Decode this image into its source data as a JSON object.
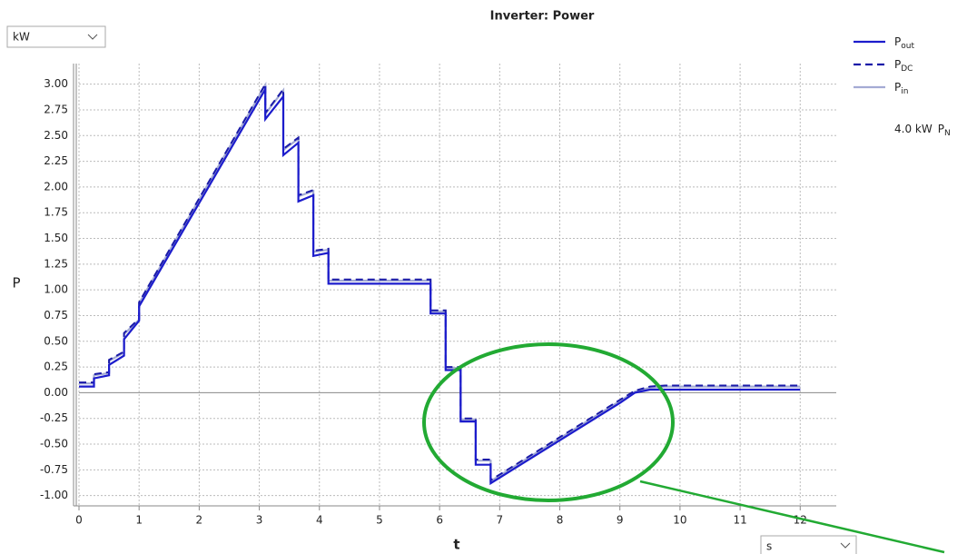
{
  "chart_data": {
    "type": "line",
    "title": "Inverter: Power",
    "x_label": "t",
    "y_label": "P",
    "x": [
      0,
      0.25,
      0.25,
      0.5,
      0.5,
      0.75,
      0.75,
      1.0,
      1.0,
      3.1,
      3.1,
      3.4,
      3.4,
      3.65,
      3.65,
      3.9,
      3.9,
      4.15,
      4.15,
      5.85,
      5.85,
      6.1,
      6.1,
      6.35,
      6.35,
      6.6,
      6.6,
      6.85,
      6.85,
      9.0,
      9.25,
      9.5,
      9.75,
      12
    ],
    "series": [
      {
        "name": "P",
        "name_sub": "out",
        "color": "#1c1ccc",
        "dash": false,
        "values": [
          0.06,
          0.06,
          0.14,
          0.17,
          0.27,
          0.36,
          0.52,
          0.7,
          0.84,
          2.95,
          2.66,
          2.88,
          2.31,
          2.43,
          1.86,
          1.92,
          1.33,
          1.36,
          1.06,
          1.06,
          0.77,
          0.77,
          0.22,
          0.22,
          -0.28,
          -0.28,
          -0.7,
          -0.7,
          -0.88,
          -0.1,
          0.0,
          0.03,
          0.03,
          0.03
        ]
      },
      {
        "name": "P",
        "name_sub": "DC",
        "color": "#1a1aa8",
        "dash": true,
        "values": [
          0.1,
          0.1,
          0.18,
          0.2,
          0.32,
          0.4,
          0.58,
          0.72,
          0.88,
          3.0,
          2.72,
          2.95,
          2.37,
          2.48,
          1.92,
          1.97,
          1.38,
          1.4,
          1.1,
          1.1,
          0.8,
          0.8,
          0.25,
          0.25,
          -0.25,
          -0.25,
          -0.65,
          -0.65,
          -0.85,
          -0.07,
          0.02,
          0.06,
          0.07,
          0.07
        ]
      },
      {
        "name": "P",
        "name_sub": "in",
        "color": "#a4abd4",
        "dash": false,
        "values": [
          0.09,
          0.09,
          0.17,
          0.19,
          0.31,
          0.39,
          0.57,
          0.71,
          0.87,
          2.99,
          2.71,
          2.94,
          2.36,
          2.47,
          1.91,
          1.96,
          1.37,
          1.39,
          1.09,
          1.09,
          0.79,
          0.79,
          0.24,
          0.24,
          -0.26,
          -0.26,
          -0.66,
          -0.66,
          -0.86,
          -0.08,
          0.01,
          0.05,
          0.06,
          0.06
        ]
      }
    ],
    "xlim": [
      0,
      12.6
    ],
    "xticks": [
      0,
      1,
      2,
      3,
      4,
      5,
      6,
      7,
      8,
      9,
      10,
      11,
      12
    ],
    "ylim": [
      -1.1,
      3.2
    ],
    "yticks": [
      {
        "value": 3,
        "label": "3.00"
      },
      2.75,
      {
        "value": 2.5,
        "label": "2.50"
      },
      2.25,
      {
        "value": 2,
        "label": "2.00"
      },
      1.75,
      {
        "value": 1.5,
        "label": "1.50"
      },
      1.25,
      {
        "value": 1,
        "label": "1.00"
      },
      0.75,
      {
        "value": 0.5,
        "label": "0.50"
      },
      0.25,
      {
        "value": 0,
        "label": "0.00"
      },
      -0.25,
      {
        "value": -0.5,
        "label": "-0.50"
      },
      -0.75,
      {
        "value": -1,
        "label": "-1.00"
      }
    ],
    "grid": true,
    "legend": "right",
    "rated": {
      "text": "4.0 kW",
      "symbol": "P",
      "sub": "N"
    }
  },
  "ui": {
    "y_unit": "kW",
    "x_unit": "s"
  }
}
